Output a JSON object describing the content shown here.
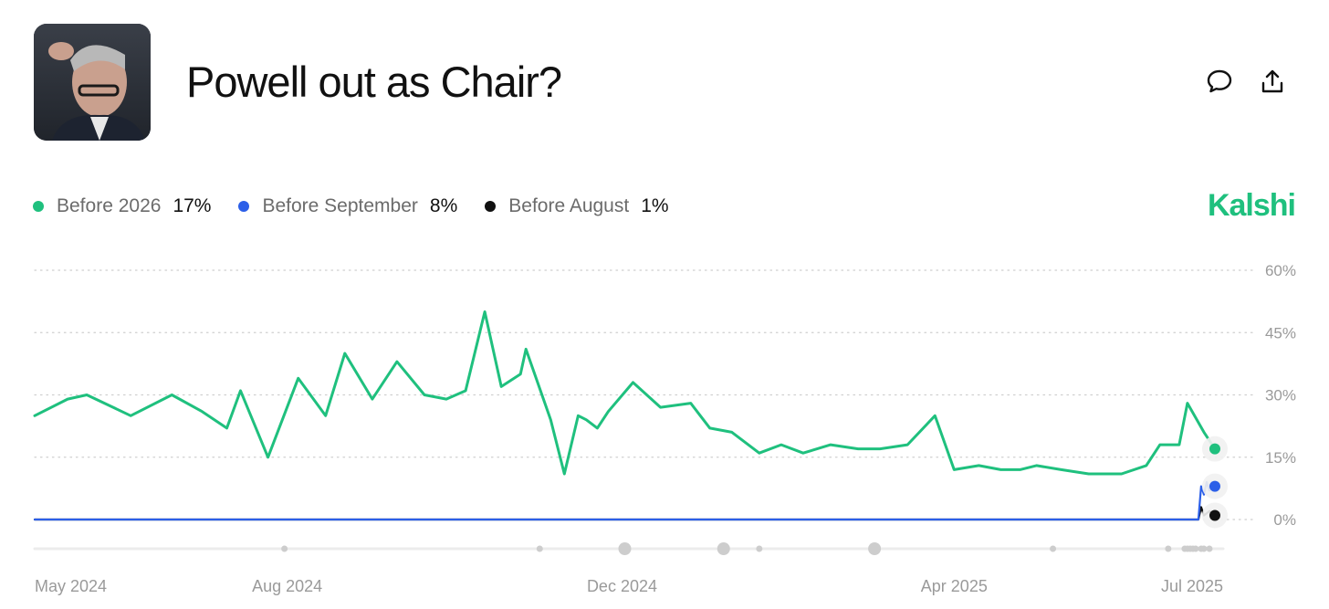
{
  "header": {
    "title": "Powell out as Chair?"
  },
  "icons": {
    "thumbnail": "powell-photo",
    "comment": "comment-icon",
    "share": "share-icon"
  },
  "brand": {
    "name": "Kalshi",
    "color": "#1fc07e"
  },
  "legend": [
    {
      "label": "Before 2026",
      "value": "17%",
      "color": "#1fc07e"
    },
    {
      "label": "Before September",
      "value": "8%",
      "color": "#2c5fe8"
    },
    {
      "label": "Before August",
      "value": "1%",
      "color": "#111111"
    }
  ],
  "chart_data": {
    "type": "line",
    "title": "",
    "xlabel": "",
    "ylabel": "",
    "ylim": [
      0,
      60
    ],
    "grid": true,
    "legend_position": "top-left",
    "y_ticks": [
      "0%",
      "15%",
      "30%",
      "45%",
      "60%"
    ],
    "x_ticks": [
      "May 2024",
      "Aug 2024",
      "Dec 2024",
      "Apr 2025",
      "Jul 2025"
    ],
    "x_tick_dates": [
      "2024-05-01",
      "2024-08-01",
      "2024-12-01",
      "2025-04-01",
      "2025-07-01"
    ],
    "x_range": [
      "2024-05-01",
      "2025-07-08"
    ],
    "series": [
      {
        "name": "Before 2026",
        "color": "#1fc07e",
        "x": [
          "2024-05-01",
          "2024-05-13",
          "2024-05-20",
          "2024-06-05",
          "2024-06-20",
          "2024-07-01",
          "2024-07-10",
          "2024-07-15",
          "2024-07-25",
          "2024-08-05",
          "2024-08-15",
          "2024-08-22",
          "2024-09-01",
          "2024-09-10",
          "2024-09-20",
          "2024-09-28",
          "2024-10-05",
          "2024-10-12",
          "2024-10-18",
          "2024-10-25",
          "2024-10-27",
          "2024-11-05",
          "2024-11-10",
          "2024-11-15",
          "2024-11-18",
          "2024-11-22",
          "2024-11-26",
          "2024-12-05",
          "2024-12-15",
          "2024-12-26",
          "2025-01-02",
          "2025-01-10",
          "2025-01-20",
          "2025-01-28",
          "2025-02-05",
          "2025-02-15",
          "2025-02-25",
          "2025-03-05",
          "2025-03-15",
          "2025-03-25",
          "2025-04-01",
          "2025-04-10",
          "2025-04-18",
          "2025-04-25",
          "2025-05-01",
          "2025-05-10",
          "2025-05-20",
          "2025-06-01",
          "2025-06-10",
          "2025-06-15",
          "2025-06-22",
          "2025-06-25",
          "2025-07-01",
          "2025-07-05"
        ],
        "values": [
          25,
          29,
          30,
          25,
          30,
          26,
          22,
          31,
          15,
          34,
          25,
          40,
          29,
          38,
          30,
          29,
          31,
          50,
          32,
          35,
          41,
          24,
          11,
          25,
          24,
          22,
          26,
          33,
          27,
          28,
          22,
          21,
          16,
          18,
          16,
          18,
          17,
          17,
          18,
          25,
          12,
          13,
          12,
          12,
          13,
          12,
          11,
          11,
          13,
          18,
          18,
          28,
          21,
          17
        ]
      },
      {
        "name": "Before September",
        "color": "#2c5fe8",
        "x": [
          "2024-05-01",
          "2025-06-29",
          "2025-06-30",
          "2025-07-01",
          "2025-07-02",
          "2025-07-03",
          "2025-07-05"
        ],
        "values": [
          0,
          0,
          8,
          6,
          9,
          7,
          8
        ]
      },
      {
        "name": "Before August",
        "color": "#111111",
        "x": [
          "2024-05-01",
          "2025-06-29",
          "2025-06-30",
          "2025-07-01",
          "2025-07-03",
          "2025-07-05"
        ],
        "values": [
          0,
          0,
          3,
          1,
          2,
          1
        ]
      }
    ],
    "event_marker_dates": [
      "2024-07-31",
      "2024-11-01",
      "2024-12-02",
      "2025-01-07",
      "2025-01-20",
      "2025-03-03",
      "2025-05-07",
      "2025-06-18",
      "2025-06-24",
      "2025-06-25",
      "2025-06-26",
      "2025-06-27",
      "2025-06-28",
      "2025-06-30",
      "2025-07-01",
      "2025-07-03"
    ]
  }
}
